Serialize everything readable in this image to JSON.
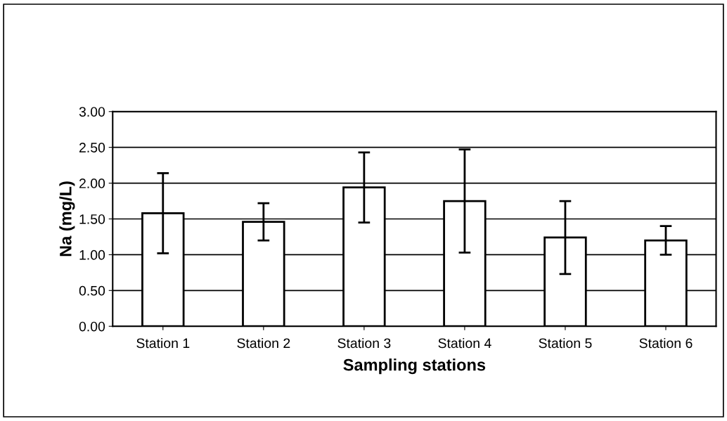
{
  "chart_data": {
    "type": "bar",
    "xlabel": "Sampling stations",
    "ylabel": "Na (mg/L)",
    "categories": [
      "Station 1",
      "Station 2",
      "Station 3",
      "Station 4",
      "Station 5",
      "Station 6"
    ],
    "values": [
      1.58,
      1.46,
      1.94,
      1.75,
      1.24,
      1.2
    ],
    "errors": [
      0.56,
      0.26,
      0.49,
      0.72,
      0.51,
      0.2
    ],
    "color": "#ffffff",
    "ylim": [
      0,
      3
    ],
    "yticks": [
      {
        "value": 0,
        "label": "0.00"
      },
      {
        "value": 0.5,
        "label": "0.50"
      },
      {
        "value": 1,
        "label": "1.00"
      },
      {
        "value": 1.5,
        "label": "1.50"
      },
      {
        "value": 2,
        "label": "2.00"
      },
      {
        "value": 2.5,
        "label": "2.50"
      },
      {
        "value": 3,
        "label": "3.00"
      }
    ],
    "grid": "y",
    "legend": false
  }
}
